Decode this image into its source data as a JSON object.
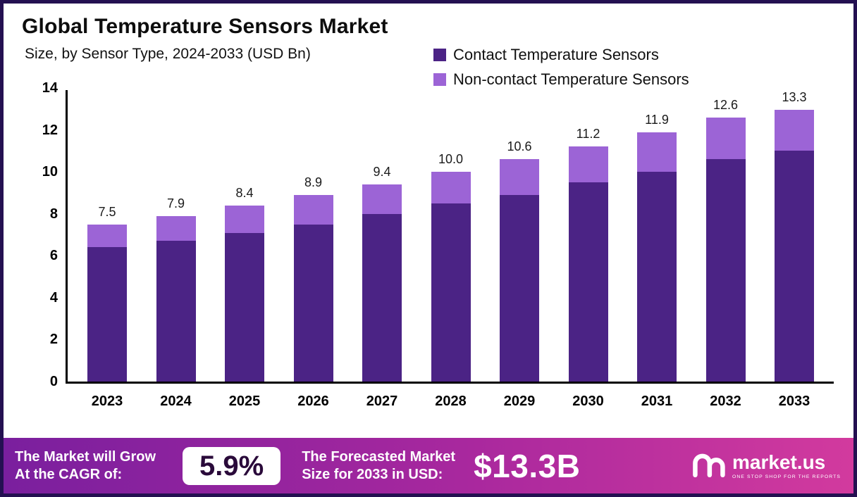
{
  "chart": {
    "title": "Global Temperature Sensors Market",
    "subtitle": "Size, by Sensor Type, 2024-2033 (USD Bn)",
    "legend": [
      {
        "label": "Contact Temperature Sensors",
        "color": "#4b2385"
      },
      {
        "label": "Non-contact Temperature Sensors",
        "color": "#9c64d6"
      }
    ]
  },
  "chart_data": {
    "type": "bar",
    "stacked": true,
    "title": "Global Temperature Sensors Market",
    "subtitle": "Size, by Sensor Type, 2024-2033 (USD Bn)",
    "xlabel": "",
    "ylabel": "",
    "ylim": [
      0,
      14
    ],
    "yticks": [
      0,
      2,
      4,
      6,
      8,
      10,
      12,
      14
    ],
    "grid": false,
    "legend_position": "top-right",
    "categories": [
      "2023",
      "2024",
      "2025",
      "2026",
      "2027",
      "2028",
      "2029",
      "2030",
      "2031",
      "2032",
      "2033"
    ],
    "series": [
      {
        "name": "Contact Temperature Sensors",
        "color": "#4b2385",
        "values": [
          6.4,
          6.7,
          7.1,
          7.5,
          8.0,
          8.5,
          8.9,
          9.5,
          10.0,
          10.6,
          11.3
        ]
      },
      {
        "name": "Non-contact Temperature Sensors",
        "color": "#9c64d6",
        "values": [
          1.1,
          1.2,
          1.3,
          1.4,
          1.4,
          1.5,
          1.7,
          1.7,
          1.9,
          2.0,
          2.0
        ]
      }
    ],
    "totals": [
      7.5,
      7.9,
      8.4,
      8.9,
      9.4,
      10.0,
      10.6,
      11.2,
      11.9,
      12.6,
      13.3
    ],
    "total_labels": [
      "7.5",
      "7.9",
      "8.4",
      "8.9",
      "9.4",
      "10.0",
      "10.6",
      "11.2",
      "11.9",
      "12.6",
      "13.3"
    ]
  },
  "banner": {
    "cagr_label_line1": "The Market will Grow",
    "cagr_label_line2": "At the CAGR of:",
    "cagr_value": "5.9%",
    "forecast_label_line1": "The Forecasted Market",
    "forecast_label_line2": "Size for 2033 in USD:",
    "forecast_value": "$13.3B",
    "logo_text": "market.us",
    "logo_tagline": "ONE STOP SHOP FOR THE REPORTS"
  },
  "colors": {
    "contact": "#4b2385",
    "noncontact": "#9c64d6",
    "frame_border": "#241051",
    "banner_gradient_start": "#7a1f9e",
    "banner_gradient_end": "#d23a9e"
  }
}
